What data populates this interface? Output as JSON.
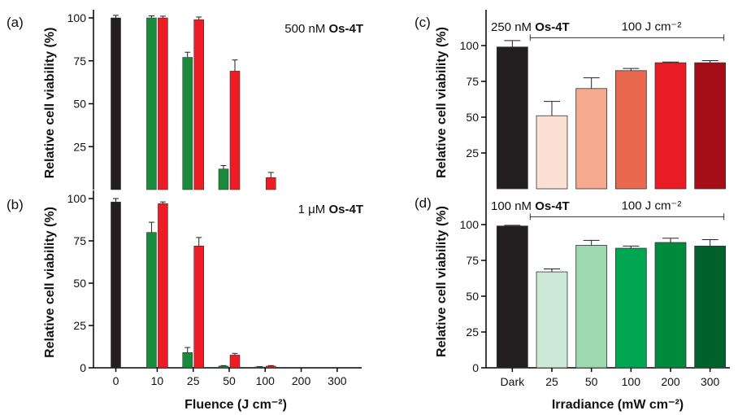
{
  "colors": {
    "dark": "#231f20",
    "green": "#1a8a3c",
    "red": "#ee1c25",
    "axis": "#000000"
  },
  "chart_data": [
    {
      "panel_label": "(a)",
      "type": "bar",
      "annotation": {
        "prefix": "500 nM",
        "compound": "Os-4T"
      },
      "ylabel": "Relative cell viability (%)",
      "xlabel": "",
      "ylim": [
        0,
        100
      ],
      "yticks": [
        25,
        50,
        75,
        100
      ],
      "categories": [
        "0",
        "10",
        "25",
        "50",
        "100",
        "200",
        "300"
      ],
      "show_category_labels": false,
      "bars": [
        {
          "category": "0",
          "slot": "center",
          "value": 100,
          "error": 1.5,
          "color": "dark"
        },
        {
          "category": "10",
          "slot": "left",
          "value": 100,
          "error": 1.2,
          "color": "green"
        },
        {
          "category": "10",
          "slot": "right",
          "value": 100,
          "error": 1.0,
          "color": "red"
        },
        {
          "category": "25",
          "slot": "left",
          "value": 77,
          "error": 3.0,
          "color": "green"
        },
        {
          "category": "25",
          "slot": "right",
          "value": 99,
          "error": 1.5,
          "color": "red"
        },
        {
          "category": "50",
          "slot": "left",
          "value": 12,
          "error": 2.0,
          "color": "green"
        },
        {
          "category": "50",
          "slot": "right",
          "value": 69,
          "error": 6.5,
          "color": "red"
        },
        {
          "category": "100",
          "slot": "right",
          "value": 7,
          "error": 3.0,
          "color": "red"
        }
      ]
    },
    {
      "panel_label": "(b)",
      "type": "bar",
      "annotation": {
        "prefix": "1 μM",
        "compound": "Os-4T"
      },
      "ylabel": "Relative cell viability (%)",
      "xlabel": "Fluence (J cm⁻²)",
      "ylim": [
        0,
        100
      ],
      "yticks": [
        0,
        25,
        50,
        75,
        100
      ],
      "categories": [
        "0",
        "10",
        "25",
        "50",
        "100",
        "200",
        "300"
      ],
      "show_category_labels": true,
      "bars": [
        {
          "category": "0",
          "slot": "center",
          "value": 98,
          "error": 2.0,
          "color": "dark"
        },
        {
          "category": "10",
          "slot": "left",
          "value": 80,
          "error": 6.0,
          "color": "green"
        },
        {
          "category": "10",
          "slot": "right",
          "value": 97,
          "error": 1.0,
          "color": "red"
        },
        {
          "category": "25",
          "slot": "left",
          "value": 9,
          "error": 3.0,
          "color": "green"
        },
        {
          "category": "25",
          "slot": "right",
          "value": 72,
          "error": 5.0,
          "color": "red"
        },
        {
          "category": "50",
          "slot": "left",
          "value": 1,
          "error": 0.3,
          "color": "green"
        },
        {
          "category": "50",
          "slot": "right",
          "value": 7.5,
          "error": 1.0,
          "color": "red"
        },
        {
          "category": "100",
          "slot": "left",
          "value": 0.5,
          "error": 0.2,
          "color": "green"
        },
        {
          "category": "100",
          "slot": "right",
          "value": 1,
          "error": 0.3,
          "color": "red"
        }
      ]
    },
    {
      "panel_label": "(c)",
      "type": "bar",
      "annotation": {
        "prefix": "250 nM",
        "compound": "Os-4T"
      },
      "bracket_label": "100 J cm⁻²",
      "ylabel": "Relative cell viability (%)",
      "xlabel": "",
      "ylim": [
        0,
        125
      ],
      "yticks": [
        25,
        50,
        75,
        100
      ],
      "categories": [
        "Dark",
        "25",
        "50",
        "100",
        "200",
        "300"
      ],
      "show_category_labels": false,
      "values": [
        99,
        51,
        70,
        82.5,
        88,
        88
      ],
      "errors": [
        4.5,
        10,
        7.5,
        1.5,
        0.5,
        1.5
      ],
      "bar_colors": [
        "#231f20",
        "#fde0d4",
        "#f5a98e",
        "#e8694e",
        "#e91c25",
        "#a50e16"
      ]
    },
    {
      "panel_label": "(d)",
      "type": "bar",
      "annotation": {
        "prefix": "100 nM",
        "compound": "Os-4T"
      },
      "bracket_label": "100 J cm⁻²",
      "ylabel": "Relative cell viability (%)",
      "xlabel": "Irradiance (mW cm⁻²)",
      "ylim": [
        0,
        125
      ],
      "yticks": [
        0,
        25,
        50,
        75,
        100
      ],
      "categories": [
        "Dark",
        "25",
        "50",
        "100",
        "200",
        "300"
      ],
      "show_category_labels": true,
      "values": [
        99,
        67,
        85.5,
        83.5,
        87.5,
        85
      ],
      "errors": [
        0.5,
        2,
        3.5,
        1.5,
        3,
        4.5
      ],
      "bar_colors": [
        "#231f20",
        "#cce8d6",
        "#9ed8ae",
        "#00a651",
        "#008a3e",
        "#00612c"
      ]
    }
  ]
}
